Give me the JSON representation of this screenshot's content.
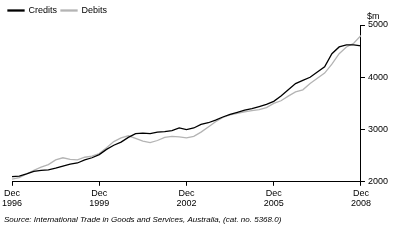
{
  "chart_data": {
    "type": "line",
    "ylabel": "$m",
    "source": "Source: International Trade in Goods and Services, Australia, (cat. no. 5368.0)",
    "categories": [
      "Dec 1996",
      null,
      null,
      null,
      null,
      null,
      null,
      null,
      null,
      null,
      null,
      null,
      "Dec 1999",
      null,
      null,
      null,
      null,
      null,
      null,
      null,
      null,
      null,
      null,
      null,
      "Dec 2002",
      null,
      null,
      null,
      null,
      null,
      null,
      null,
      null,
      null,
      null,
      null,
      "Dec 2005",
      null,
      null,
      null,
      null,
      null,
      null,
      null,
      null,
      null,
      null,
      null,
      "Dec 2008"
    ],
    "series": [
      {
        "name": "Credits",
        "color": "#000000",
        "values": [
          2100,
          2110,
          2150,
          2200,
          2220,
          2230,
          2260,
          2300,
          2340,
          2360,
          2420,
          2460,
          2520,
          2620,
          2700,
          2760,
          2850,
          2920,
          2930,
          2920,
          2950,
          2960,
          2980,
          3030,
          3000,
          3030,
          3100,
          3130,
          3180,
          3240,
          3290,
          3330,
          3370,
          3400,
          3440,
          3480,
          3540,
          3640,
          3760,
          3880,
          3940,
          4000,
          4100,
          4200,
          4450,
          4580,
          4620,
          4620,
          4600
        ]
      },
      {
        "name": "Debits",
        "color": "#b4b4b4",
        "values": [
          2050,
          2080,
          2150,
          2220,
          2280,
          2330,
          2420,
          2460,
          2430,
          2420,
          2470,
          2490,
          2540,
          2650,
          2770,
          2840,
          2880,
          2830,
          2780,
          2750,
          2790,
          2850,
          2870,
          2860,
          2840,
          2870,
          2950,
          3050,
          3150,
          3230,
          3280,
          3310,
          3340,
          3360,
          3380,
          3420,
          3500,
          3550,
          3640,
          3720,
          3760,
          3880,
          3980,
          4080,
          4250,
          4450,
          4580,
          4650,
          4800
        ]
      }
    ],
    "ylim": [
      2000,
      5000
    ],
    "yticks": [
      2000,
      3000,
      4000,
      5000
    ],
    "grid": false,
    "legend": "top-left"
  }
}
